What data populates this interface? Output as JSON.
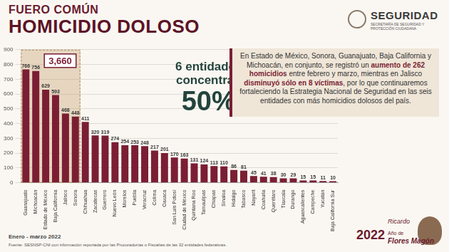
{
  "chart_data": {
    "type": "bar",
    "subtitle": "FUERO COMÚN",
    "title": "HOMICIDIO DOLOSO",
    "categories": [
      "Guanajuato",
      "Michoacán",
      "Estado de México",
      "Baja California",
      "Jalisco",
      "Sonora",
      "Chihuahua",
      "Zacatecas",
      "Guerrero",
      "Nuevo León",
      "Morelos",
      "Puebla",
      "Veracruz",
      "Colima",
      "Oaxaca",
      "San Luis Potosí",
      "Ciudad de México",
      "Quintana Roo",
      "Tamaulipas",
      "Chiapas",
      "Sinaloa",
      "Hidalgo",
      "Tabasco",
      "Nayarit",
      "Coahuila",
      "Querétaro",
      "Tlaxcala",
      "Durango",
      "Aguascalientes",
      "Campeche",
      "Yucatán",
      "Baja California Sur"
    ],
    "values": [
      766,
      756,
      629,
      593,
      468,
      448,
      411,
      320,
      319,
      274,
      254,
      253,
      248,
      217,
      201,
      170,
      163,
      131,
      124,
      113,
      110,
      86,
      81,
      45,
      41,
      38,
      30,
      29,
      15,
      15,
      11,
      10
    ],
    "color": "#7b1e34",
    "ylim": [
      0,
      900
    ],
    "yticks": [
      0,
      100,
      200,
      300,
      400,
      500,
      600,
      700,
      800,
      900
    ],
    "grid": true,
    "data_labels": true,
    "annotation": {
      "label": "3,660",
      "value": 3660
    }
  },
  "highlight": {
    "line1": "6 entidades",
    "line2": "concentran",
    "value": "50%"
  },
  "text_box": [
    {
      "text": "En Estado de México, Sonora, Guanajuato, Baja California y Michoacán, en conjunto, se registró un ",
      "bold": false
    },
    {
      "text": "aumento de 262 homicidios",
      "bold": true
    },
    {
      "text": " entre febrero y marzo, mientras en Jalisco ",
      "bold": false
    },
    {
      "text": "disminuyó sólo en 8 víctimas",
      "bold": true
    },
    {
      "text": ", por lo que continuaremos fortaleciendo la Estrategia Nacional de Seguridad en las seis entidades con más homicidios dolosos del país.",
      "bold": false
    }
  ],
  "period": "Enero - marzo 2022",
  "source": "Fuente: SESNSP-CNI con información reportada por las Procuradurías o Fiscalías de las 32 entidades federativas.",
  "logo": {
    "name": "SEGURIDAD",
    "subtitle": "SECRETARÍA DE SEGURIDAD Y PROTECCIÓN CIUDADANA"
  },
  "anniversary": [
    "2022",
    "Año de",
    "Ricardo",
    "Flores Magón"
  ]
}
